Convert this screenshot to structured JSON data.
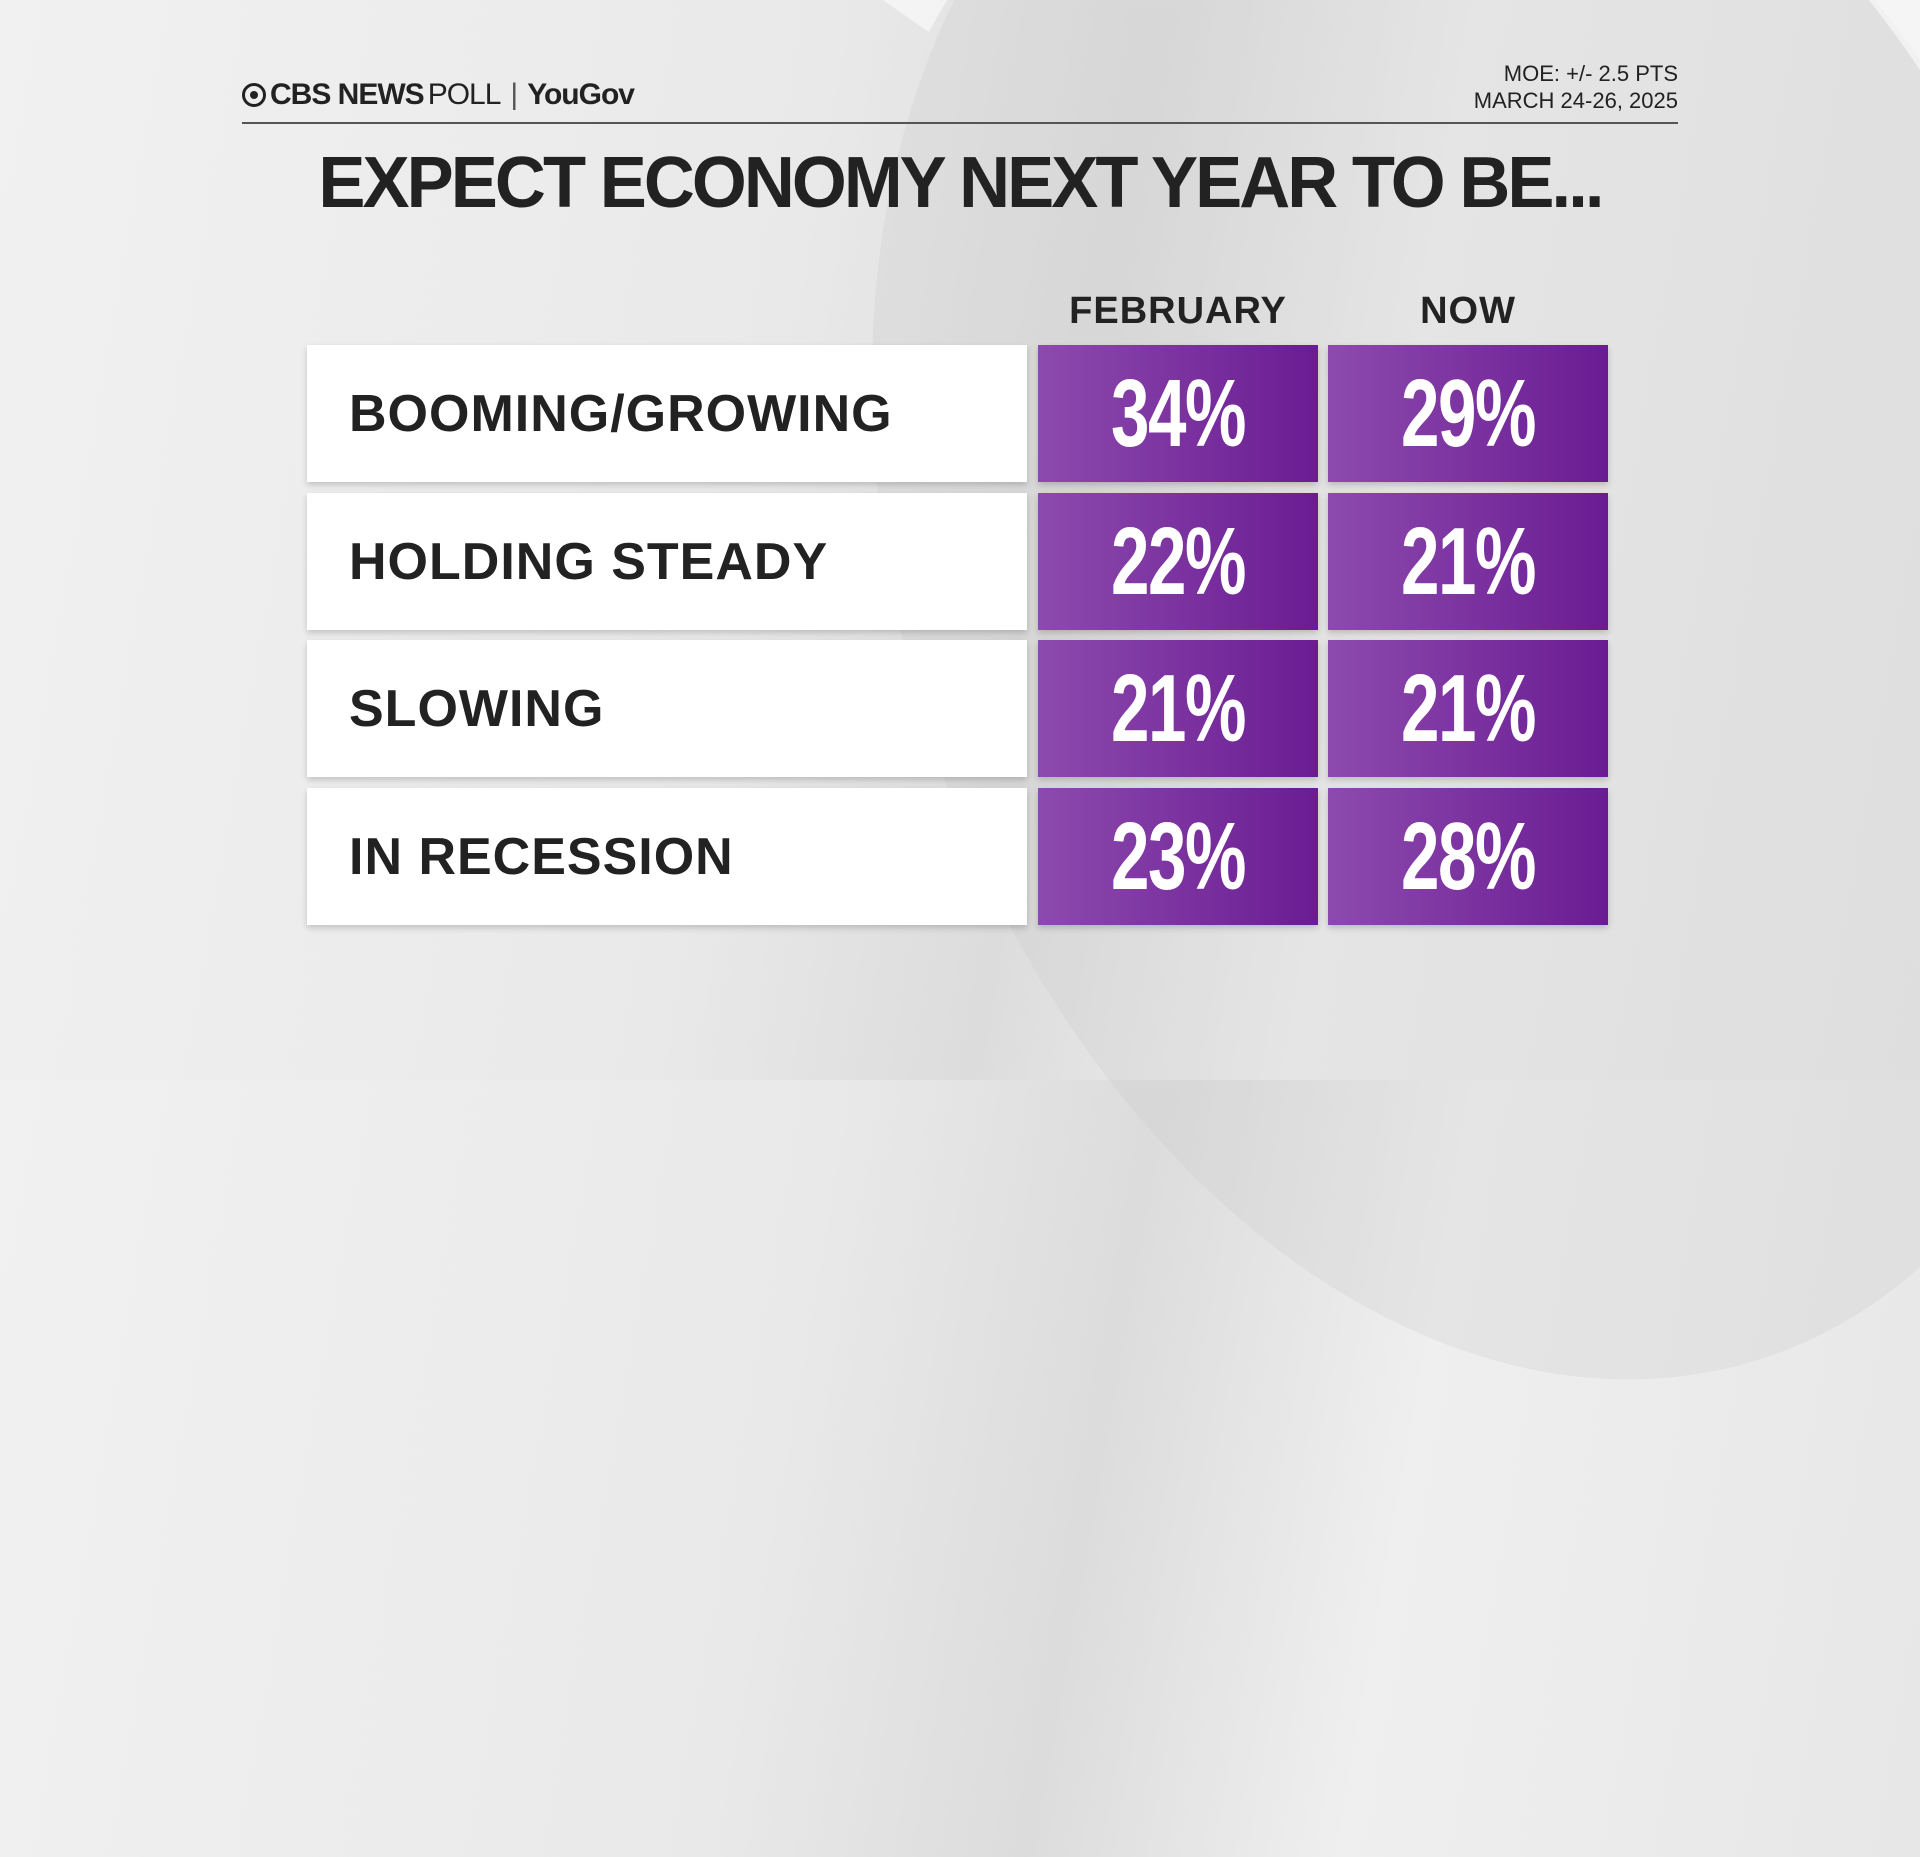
{
  "header": {
    "brand": "CBS NEWS",
    "poll": "POLL",
    "partner": "YouGov",
    "moe": "MOE: +/- 2.5 PTS",
    "dates": "MARCH 24-26, 2025"
  },
  "chart_data": {
    "type": "table",
    "title": "EXPECT ECONOMY NEXT YEAR TO BE...",
    "columns": [
      "FEBRUARY",
      "NOW"
    ],
    "rows": [
      {
        "label": "BOOMING/GROWING",
        "values": [
          "34%",
          "29%"
        ]
      },
      {
        "label": "HOLDING STEADY",
        "values": [
          "22%",
          "21%"
        ]
      },
      {
        "label": "SLOWING",
        "values": [
          "21%",
          "21%"
        ]
      },
      {
        "label": "IN RECESSION",
        "values": [
          "23%",
          "28%"
        ]
      }
    ],
    "colors": {
      "cell": "#7b2fa0",
      "label_bg": "#ffffff"
    }
  }
}
